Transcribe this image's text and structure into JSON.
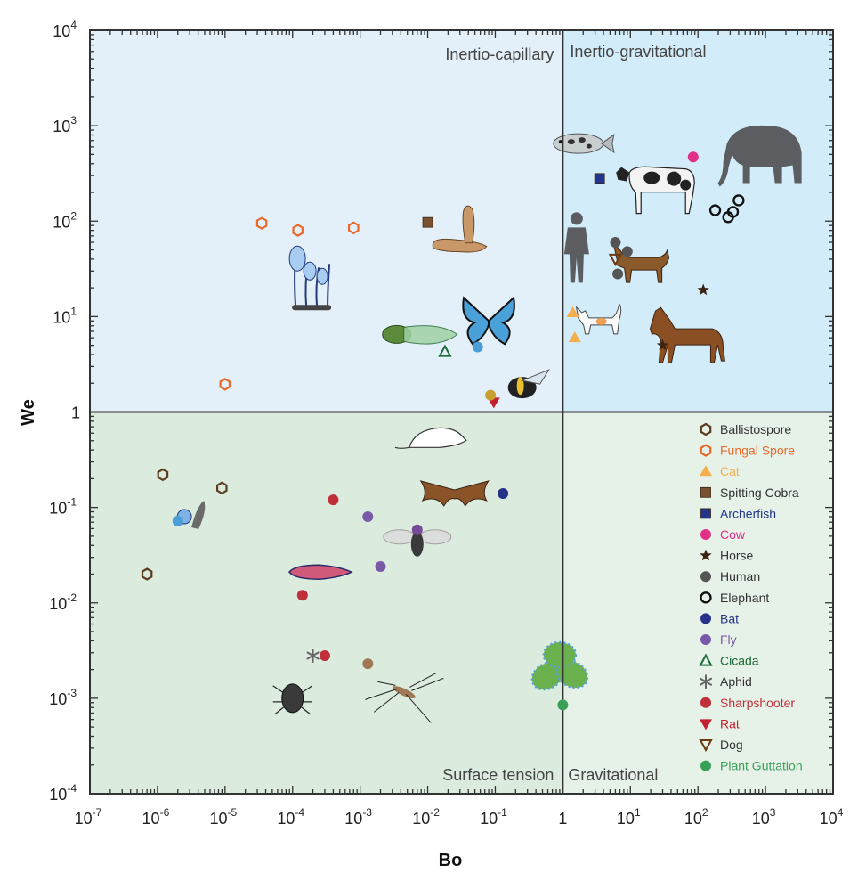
{
  "chart_data": {
    "type": "scatter",
    "xlabel": "Bo",
    "ylabel": "We",
    "xscale": "log",
    "yscale": "log",
    "xlim": [
      1e-07,
      10000.0
    ],
    "ylim": [
      0.0001,
      10000.0
    ],
    "x_tick_labels": [
      {
        "base": "10",
        "exp": "-7"
      },
      {
        "base": "10",
        "exp": "-6"
      },
      {
        "base": "10",
        "exp": "-5"
      },
      {
        "base": "10",
        "exp": "-4"
      },
      {
        "base": "10",
        "exp": "-3"
      },
      {
        "base": "10",
        "exp": "-2"
      },
      {
        "base": "10",
        "exp": "-1"
      },
      {
        "base": "1",
        "exp": ""
      },
      {
        "base": "10",
        "exp": "1"
      },
      {
        "base": "10",
        "exp": "2"
      },
      {
        "base": "10",
        "exp": "3"
      },
      {
        "base": "10",
        "exp": "4"
      }
    ],
    "y_tick_labels": [
      {
        "base": "10",
        "exp": "-4"
      },
      {
        "base": "10",
        "exp": "-3"
      },
      {
        "base": "10",
        "exp": "-2"
      },
      {
        "base": "10",
        "exp": "-1"
      },
      {
        "base": "1",
        "exp": ""
      },
      {
        "base": "10",
        "exp": "1"
      },
      {
        "base": "10",
        "exp": "2"
      },
      {
        "base": "10",
        "exp": "3"
      },
      {
        "base": "10",
        "exp": "4"
      }
    ],
    "regions": [
      {
        "label": "Inertio-capillary",
        "color": "#e3f0f9"
      },
      {
        "label": "Inertio-gravitational",
        "color": "#d2ecf9"
      },
      {
        "label": "Surface tension",
        "color": "#dbecdf"
      },
      {
        "label": "Gravitational",
        "color": "#e6f1e8"
      }
    ],
    "legend_position": "bottom-right",
    "series": [
      {
        "name": "Ballistospore",
        "marker": "hexagon-open",
        "color": "#5a3c1e",
        "points": [
          [
            1.2e-06,
            0.22
          ],
          [
            9e-06,
            0.16
          ],
          [
            7e-07,
            0.02
          ]
        ]
      },
      {
        "name": "Fungal Spore",
        "marker": "hexagon-open",
        "color": "#e8692a",
        "points": [
          [
            3.5e-05,
            95
          ],
          [
            0.00012,
            80
          ],
          [
            0.0008,
            85
          ],
          [
            1e-05,
            1.95
          ]
        ]
      },
      {
        "name": "Cat",
        "marker": "triangle-up",
        "color": "#f4ae4c",
        "points": [
          [
            1.4,
            11
          ],
          [
            1.5,
            6
          ]
        ]
      },
      {
        "name": "Spitting Cobra",
        "marker": "square",
        "color": "#7b5230",
        "points": [
          [
            0.01,
            97
          ]
        ]
      },
      {
        "name": "Archerfish",
        "marker": "square",
        "color": "#23368e",
        "points": [
          [
            3.5,
            280
          ]
        ]
      },
      {
        "name": "Cow",
        "marker": "circle",
        "color": "#e03088",
        "points": [
          [
            85,
            470
          ]
        ]
      },
      {
        "name": "Horse",
        "marker": "star",
        "color": "#3a2313",
        "points": [
          [
            120,
            19
          ],
          [
            30,
            5
          ]
        ]
      },
      {
        "name": "Human",
        "marker": "circle",
        "color": "#555555",
        "points": [
          [
            6,
            60
          ],
          [
            9,
            48
          ],
          [
            6.5,
            28
          ]
        ]
      },
      {
        "name": "Elephant",
        "marker": "circle-open",
        "color": "#111111",
        "points": [
          [
            180,
            130
          ],
          [
            280,
            110
          ],
          [
            330,
            125
          ],
          [
            400,
            165
          ]
        ]
      },
      {
        "name": "Bat",
        "marker": "circle",
        "color": "#263289",
        "points": [
          [
            0.13,
            0.14
          ]
        ]
      },
      {
        "name": "Fly",
        "marker": "circle",
        "color": "#7a5aa8",
        "points": [
          [
            0.0013,
            0.08
          ],
          [
            0.002,
            0.024
          ]
        ]
      },
      {
        "name": "Cicada",
        "marker": "triangle-up-open",
        "color": "#1e6a3a",
        "points": [
          [
            0.018,
            4.3
          ]
        ]
      },
      {
        "name": "Aphid",
        "marker": "asterisk",
        "color": "#666666",
        "points": [
          [
            0.0002,
            0.0028
          ]
        ]
      },
      {
        "name": "Sharpshooter",
        "marker": "circle",
        "color": "#c0303a",
        "points": [
          [
            0.0004,
            0.12
          ],
          [
            0.00014,
            0.012
          ],
          [
            0.0003,
            0.0028
          ]
        ]
      },
      {
        "name": "Rat",
        "marker": "triangle-down",
        "color": "#c22030",
        "points": [
          [
            0.095,
            1.27
          ]
        ]
      },
      {
        "name": "Dog",
        "marker": "triangle-down-open",
        "color": "#6a3a10",
        "points": [
          [
            6,
            40
          ]
        ]
      },
      {
        "name": "Plant Guttation",
        "marker": "circle",
        "color": "#3aa058",
        "points": [
          [
            1.0,
            0.00085
          ]
        ]
      }
    ],
    "unlabeled_points": [
      {
        "x": 0.055,
        "y": 4.8,
        "color": "#4a9ed8"
      },
      {
        "x": 0.085,
        "y": 1.5,
        "color": "#c8a030"
      },
      {
        "x": 0.0013,
        "y": 0.0023,
        "color": "#a07855"
      },
      {
        "x": 2e-06,
        "y": 0.072,
        "color": "#4a9ed8"
      }
    ],
    "illustrations": [
      {
        "icon": "fish-icon",
        "x": 1.7,
        "y": 650
      },
      {
        "icon": "cow-icon",
        "x": 28,
        "y": 250
      },
      {
        "icon": "elephant-icon",
        "x": 900,
        "y": 420
      },
      {
        "icon": "human-icon",
        "x": 1.6,
        "y": 45
      },
      {
        "icon": "dog-icon",
        "x": 15,
        "y": 35
      },
      {
        "icon": "cat-icon",
        "x": 3.5,
        "y": 8.5
      },
      {
        "icon": "horse-icon",
        "x": 70,
        "y": 6
      },
      {
        "icon": "cobra-icon",
        "x": 0.03,
        "y": 80
      },
      {
        "icon": "fungus-icon",
        "x": 0.00018,
        "y": 30
      },
      {
        "icon": "butterfly-icon",
        "x": 0.08,
        "y": 9
      },
      {
        "icon": "cicada-icon",
        "x": 0.006,
        "y": 6.5
      },
      {
        "icon": "bee-icon",
        "x": 0.25,
        "y": 1.8
      },
      {
        "icon": "mouse-icon",
        "x": 0.015,
        "y": 0.55
      },
      {
        "icon": "bat-icon",
        "x": 0.025,
        "y": 0.14
      },
      {
        "icon": "fly-icon",
        "x": 0.007,
        "y": 0.045
      },
      {
        "icon": "leafhopper-icon",
        "x": 0.00025,
        "y": 0.021
      },
      {
        "icon": "spore-icon",
        "x": 3e-06,
        "y": 0.08
      },
      {
        "icon": "aphid-icon",
        "x": 0.0001,
        "y": 0.001
      },
      {
        "icon": "mosquito-icon",
        "x": 0.004,
        "y": 0.0012
      },
      {
        "icon": "leaf-icon",
        "x": 0.9,
        "y": 0.0015
      }
    ]
  }
}
